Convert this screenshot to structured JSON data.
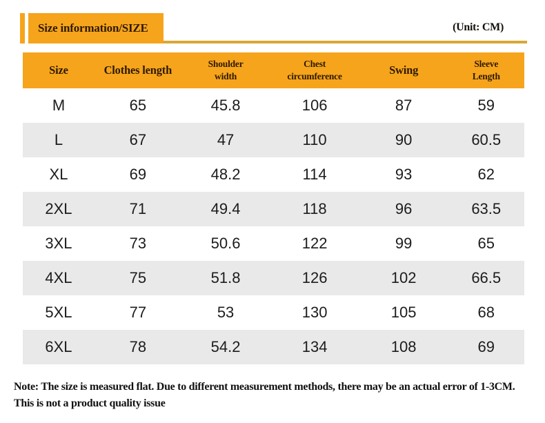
{
  "header": {
    "title_badge": "Size information/SIZE",
    "unit_label": "(Unit: CM)"
  },
  "chart_data": {
    "type": "table",
    "title": "Size information/SIZE",
    "unit": "CM",
    "columns": [
      {
        "label": "Size",
        "lines": [
          "Size"
        ]
      },
      {
        "label": "Clothes length",
        "lines": [
          "Clothes length"
        ]
      },
      {
        "label": "Shoulder width",
        "lines": [
          "Shoulder",
          "width"
        ]
      },
      {
        "label": "Chest circumference",
        "lines": [
          "Chest",
          "circumference"
        ]
      },
      {
        "label": "Swing",
        "lines": [
          "Swing"
        ]
      },
      {
        "label": "Sleeve Length",
        "lines": [
          "Sleeve",
          "Length"
        ]
      }
    ],
    "rows": [
      {
        "size": "M",
        "values": [
          "65",
          "45.8",
          "106",
          "87",
          "59"
        ]
      },
      {
        "size": "L",
        "values": [
          "67",
          "47",
          "110",
          "90",
          "60.5"
        ]
      },
      {
        "size": "XL",
        "values": [
          "69",
          "48.2",
          "114",
          "93",
          "62"
        ]
      },
      {
        "size": "2XL",
        "values": [
          "71",
          "49.4",
          "118",
          "96",
          "63.5"
        ]
      },
      {
        "size": "3XL",
        "values": [
          "73",
          "50.6",
          "122",
          "99",
          "65"
        ]
      },
      {
        "size": "4XL",
        "values": [
          "75",
          "51.8",
          "126",
          "102",
          "66.5"
        ]
      },
      {
        "size": "5XL",
        "values": [
          "77",
          "53",
          "130",
          "105",
          "68"
        ]
      },
      {
        "size": "6XL",
        "values": [
          "78",
          "54.2",
          "134",
          "108",
          "69"
        ]
      }
    ]
  },
  "note": {
    "line1": "Note: The size is measured flat. Due to different measurement methods, there may be an actual error of 1-3CM.",
    "line2": "This is not a product quality issue"
  },
  "colors": {
    "accent_orange": "#F6A41C",
    "gold_line": "#D9A733",
    "alt_row_gray": "#E9E9E9",
    "header_text": "#2E1A00",
    "body_text": "#1C1C1C"
  }
}
